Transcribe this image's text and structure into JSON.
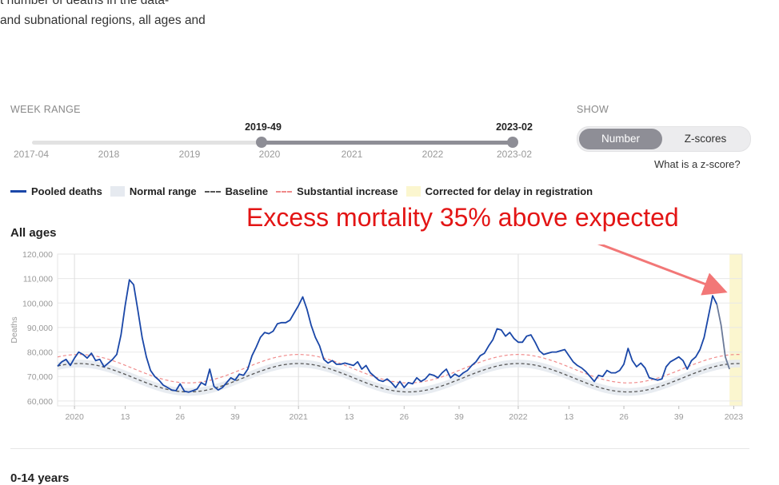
{
  "intro": {
    "line1": "t number of deaths in the data-",
    "line2": "and subnational regions, all ages and"
  },
  "controls": {
    "week_range_label": "WEEK RANGE",
    "range_start": "2019-49",
    "range_end": "2023-02",
    "range_end_tick": "2023-02",
    "first_tick": "2017-04",
    "year_ticks": [
      "2018",
      "2019",
      "2020",
      "2021",
      "2022"
    ],
    "show_label": "SHOW",
    "toggle_number": "Number",
    "toggle_zscores": "Z-scores",
    "zscore_link": "What is a z-score?"
  },
  "legend": {
    "pooled": "Pooled deaths",
    "normal": "Normal range",
    "baseline": "Baseline",
    "substantial": "Substantial increase",
    "delay": "Corrected for delay in registration"
  },
  "annotation": "Excess mortality 35% above expected",
  "section_title": "All ages",
  "next_title": "0-14 years",
  "colors": {
    "pooled": "#1a47a8",
    "baseline": "#555555",
    "substantial": "#f08a8a",
    "normal": "#e6eaf0",
    "delay": "#fbf6cf",
    "annotation": "#e31515"
  },
  "chart_data": {
    "type": "line",
    "ylabel": "Deaths",
    "ylim": [
      58000,
      120000
    ],
    "y_ticks": [
      60000,
      70000,
      80000,
      90000,
      100000,
      110000,
      120000
    ],
    "y_tick_labels": [
      "60,000",
      "70,000",
      "80,000",
      "90,000",
      "100,000",
      "110,000",
      "120,000"
    ],
    "x_ticks": [
      {
        "week": 1,
        "label": "2020"
      },
      {
        "week": 13,
        "label": "13"
      },
      {
        "week": 26,
        "label": "26"
      },
      {
        "week": 39,
        "label": "39"
      },
      {
        "week": 54,
        "label": "2021"
      },
      {
        "week": 66,
        "label": "13"
      },
      {
        "week": 79,
        "label": "26"
      },
      {
        "week": 92,
        "label": "39"
      },
      {
        "week": 106,
        "label": "2022"
      },
      {
        "week": 118,
        "label": "13"
      },
      {
        "week": 131,
        "label": "26"
      },
      {
        "week": 144,
        "label": "39"
      },
      {
        "week": 157,
        "label": "2023"
      }
    ],
    "x_range": [
      -3,
      159
    ],
    "x_grid_weeks": [
      1,
      54,
      106
    ],
    "grid": true,
    "delay_region": [
      156,
      159
    ],
    "baseline": {
      "start_week": -3,
      "mean": 69500,
      "amplitude": 5800,
      "peak_week": 54,
      "period": 52
    },
    "substantial_offset": 3700,
    "normal_band": [
      -1600,
      1600
    ],
    "series": [
      {
        "name": "Pooled deaths",
        "start_week": -3,
        "values": [
          74200,
          76000,
          77000,
          74500,
          77500,
          80000,
          79000,
          77500,
          79500,
          76500,
          77000,
          74000,
          75500,
          77000,
          79000,
          87000,
          99000,
          109500,
          107500,
          97000,
          86000,
          78000,
          72500,
          70000,
          68500,
          66500,
          65500,
          64500,
          64200,
          67000,
          64000,
          63600,
          64200,
          64900,
          67500,
          66500,
          73000,
          66000,
          64500,
          65500,
          67500,
          69500,
          68500,
          71000,
          70500,
          73000,
          78500,
          82000,
          86000,
          88000,
          87500,
          88500,
          91500,
          92000,
          92000,
          93000,
          96000,
          99000,
          102500,
          97500,
          91000,
          86000,
          82500,
          77000,
          75500,
          76500,
          75000,
          75000,
          75500,
          75000,
          74500,
          76000,
          73000,
          74500,
          71500,
          70000,
          68500,
          68000,
          69000,
          67500,
          65500,
          68000,
          65500,
          67500,
          67000,
          69500,
          68000,
          69000,
          71000,
          70500,
          69500,
          71500,
          73000,
          69500,
          71000,
          70000,
          71500,
          72500,
          74500,
          76000,
          78500,
          79500,
          82500,
          85000,
          89500,
          89000,
          86500,
          88000,
          85500,
          84000,
          84000,
          86500,
          87000,
          84000,
          80500,
          79000,
          79500,
          80000,
          80000,
          80500,
          81000,
          78500,
          76000,
          74500,
          73500,
          72000,
          70000,
          68000,
          70500,
          70000,
          72500,
          71500,
          71500,
          72500,
          75000,
          81500,
          76500,
          74000,
          75500,
          73500,
          69500,
          69000,
          68500,
          69000,
          74000,
          76000,
          77000,
          78000,
          76500,
          73000,
          76500,
          78000,
          81000,
          86000,
          94500,
          103000,
          99500,
          91000,
          78000,
          73000
        ]
      }
    ]
  }
}
